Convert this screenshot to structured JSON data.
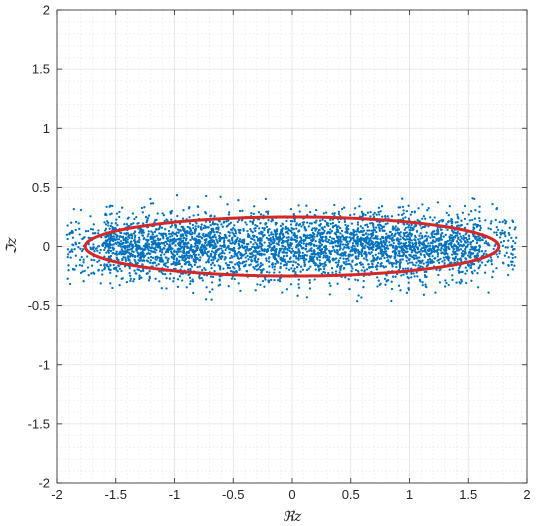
{
  "chart_data": {
    "type": "scatter",
    "title": "",
    "xlabel": "ℜz",
    "ylabel": "ℑz",
    "xlim": [
      -2,
      2
    ],
    "ylim": [
      -2,
      2
    ],
    "x_ticks": [
      -2,
      -1.5,
      -1,
      -0.5,
      0,
      0.5,
      1,
      1.5,
      2
    ],
    "y_ticks": [
      -2,
      -1.5,
      -1,
      -0.5,
      0,
      0.5,
      1,
      1.5,
      2
    ],
    "x_tick_labels": [
      "-2",
      "-1.5",
      "-1",
      "-0.5",
      "0",
      "0.5",
      "1",
      "1.5",
      "2"
    ],
    "y_tick_labels": [
      "-2",
      "-1.5",
      "-1",
      "-0.5",
      "0",
      "0.5",
      "1",
      "1.5",
      "2"
    ],
    "grid": true,
    "minor_grid": true,
    "series": [
      {
        "kind": "scatter",
        "color": "#0072BD",
        "distribution": "approx. uniform in x from -1.85 to 1.95, y concentrated in |y| < 0.45",
        "approx_count": 4000
      },
      {
        "kind": "ellipse",
        "color": "#D62728",
        "center": [
          0,
          0
        ],
        "semi_axis_x": 1.76,
        "semi_axis_y": 0.25
      }
    ]
  }
}
